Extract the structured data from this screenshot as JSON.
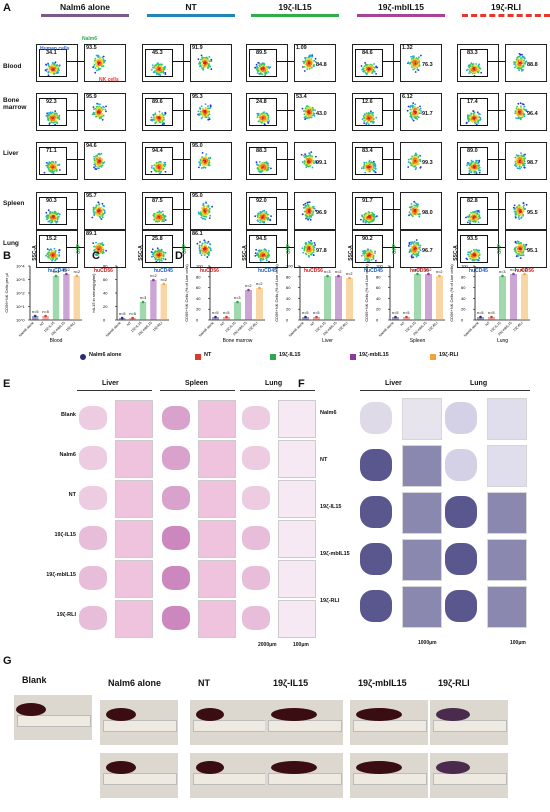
{
  "panels": {
    "A": "A",
    "B": "B",
    "C": "C",
    "D": "D",
    "E": "E",
    "F": "F",
    "G": "G"
  },
  "panelA": {
    "groups": [
      {
        "label": "Nalm6 alone",
        "color": "#7a5a8c",
        "dashed": false
      },
      {
        "label": "NT",
        "color": "#1f86b5",
        "dashed": false
      },
      {
        "label": "19ζ-IL15",
        "color": "#2eae4a",
        "dashed": false
      },
      {
        "label": "19ζ-mbIL15",
        "color": "#a8419a",
        "dashed": false
      },
      {
        "label": "19ζ-RLI",
        "color": "#e8352d",
        "dashed": true
      }
    ],
    "rows": [
      "Blood",
      "Bone marrow",
      "Liver",
      "Spleen",
      "Lung"
    ],
    "gate_labels": {
      "human": "Human cells",
      "nalm6": "Nalm6",
      "nk": "NK cells"
    },
    "axis_labels": {
      "ssc": "SSC-A",
      "gfp": "GFP",
      "hucd45": "huCD45",
      "hucd56": "huCD56"
    },
    "percentages": {
      "left": [
        [
          "34.1",
          "45.3",
          "89.5",
          "84.6",
          "83.3"
        ],
        [
          "92.3",
          "89.6",
          "24.8",
          "12.6",
          "17.4"
        ],
        [
          "71.1",
          "94.4",
          "88.3",
          "83.4",
          "89.0"
        ],
        [
          "90.3",
          "87.5",
          "92.0",
          "91.7",
          "82.8"
        ],
        [
          "15.2",
          "25.8",
          "94.5",
          "90.2",
          "93.5"
        ]
      ],
      "right_top": [
        [
          "93.5",
          "91.9",
          "1.09",
          "1.32",
          ""
        ],
        [
          "95.9",
          "95.3",
          "53.4",
          "6.12",
          ""
        ],
        [
          "94.6",
          "95.0",
          "",
          "",
          ""
        ],
        [
          "95.7",
          "95.0",
          "",
          "",
          ""
        ],
        [
          "89.1",
          "86.1",
          "",
          "",
          ""
        ]
      ],
      "right_bottom": [
        [
          "",
          "",
          "84.8",
          "76.3",
          "88.8"
        ],
        [
          "",
          "",
          "43.0",
          "91.7",
          "96.4"
        ],
        [
          "",
          "",
          "99.1",
          "99.3",
          "98.7"
        ],
        [
          "",
          "",
          "96.9",
          "98.0",
          "95.5"
        ],
        [
          "",
          "",
          "97.8",
          "96.7",
          "95.1"
        ]
      ]
    }
  },
  "panelB": {
    "ylabel": "CD56+NK Cells per μl",
    "xlabel": "Blood",
    "ticks": [
      "10^4",
      "10^3",
      "10^2",
      "10^1",
      "10^0"
    ],
    "n_labels": [
      "n=5",
      "n=5",
      "n=3",
      "n=2",
      "n=2"
    ],
    "categories": [
      "Nalm6 alone",
      "NT",
      "19ζ-IL15",
      "19ζ-mbIL15",
      "19ζ-RLI"
    ]
  },
  "panelC": {
    "ylabel": "hIL15 in serum(pg/ml)",
    "ticks": [
      "80",
      "60",
      "40",
      "20",
      "0"
    ],
    "n_labels": [
      "n=5",
      "n=5",
      "n=3",
      "n=2",
      "n=2"
    ],
    "categories": [
      "Nalm6 alone",
      "NT",
      "19ζ-IL15",
      "19ζ-mbIL15",
      "19ζ-RLI"
    ]
  },
  "panelD": {
    "ylabel": "CD56+NK Cells (% of Live cells)",
    "tissues": [
      "Bone marrow",
      "Liver",
      "Spleen",
      "Lung"
    ],
    "ticks": [
      "100",
      "80",
      "60",
      "40",
      "20",
      "0"
    ],
    "n_labels": [
      "n=5",
      "n=5",
      "n=3",
      "n=2",
      "n=2"
    ],
    "categories": [
      "Nalm6 alone",
      "NT",
      "19ζ-IL15",
      "19ζ-mbIL15",
      "19ζ-RLI"
    ]
  },
  "legend": [
    {
      "label": "Nalm6 alone",
      "color": "#2b2a78",
      "shape": "circle"
    },
    {
      "label": "NT",
      "color": "#d83a2e",
      "shape": "square"
    },
    {
      "label": "19ζ-IL15",
      "color": "#2ea84a",
      "shape": "triangle"
    },
    {
      "label": "19ζ-mbIL15",
      "color": "#8c3aa0",
      "shape": "triangle-down"
    },
    {
      "label": "19ζ-RLI",
      "color": "#f2a33a",
      "shape": "diamond"
    }
  ],
  "panelE": {
    "tissues": [
      "Liver",
      "Spleen",
      "Lung"
    ],
    "rows": [
      "Blank",
      "Nalm6",
      "NT",
      "19ζ-IL15",
      "19ζ-mbIL15",
      "19ζ-RLI"
    ],
    "scale": [
      "2000μm",
      "100μm"
    ]
  },
  "panelF": {
    "tissues": [
      "Liver",
      "Lung"
    ],
    "rows": [
      "Nalm6",
      "NT",
      "19ζ-IL15",
      "19ζ-mbIL15",
      "19ζ-RLI"
    ],
    "scale": [
      "1000μm",
      "100μm"
    ]
  },
  "panelG": {
    "groups": [
      "Blank",
      "Nalm6 alone",
      "NT",
      "19ζ-IL15",
      "19ζ-mbIL15",
      "19ζ-RLI"
    ]
  }
}
